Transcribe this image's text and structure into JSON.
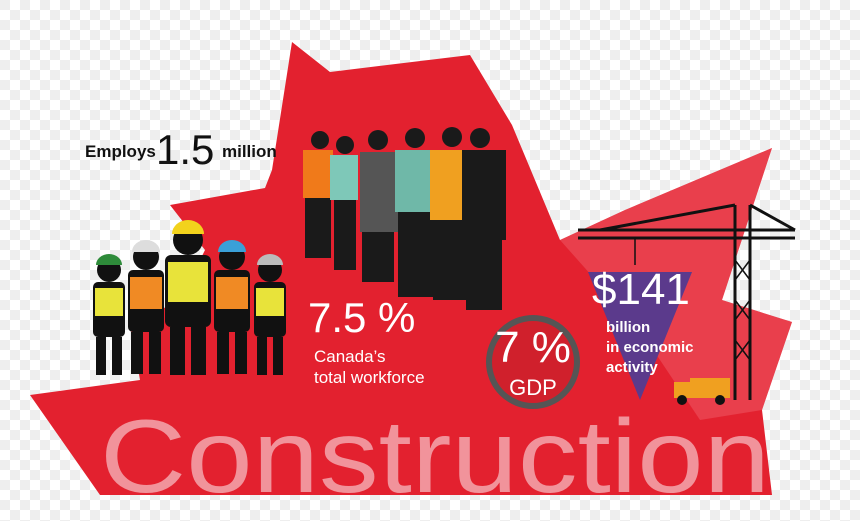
{
  "headline": {
    "prefix": "Employs",
    "number": "1.5",
    "suffix": "million"
  },
  "workforce": {
    "number": "7.5 %",
    "lines": [
      "Canada’s",
      "total workforce"
    ]
  },
  "gdp": {
    "number": "7 %",
    "label": "GDP"
  },
  "activity": {
    "number": "$141",
    "lines": [
      "billion",
      "in economic",
      "activity"
    ]
  },
  "title": "Construction"
}
